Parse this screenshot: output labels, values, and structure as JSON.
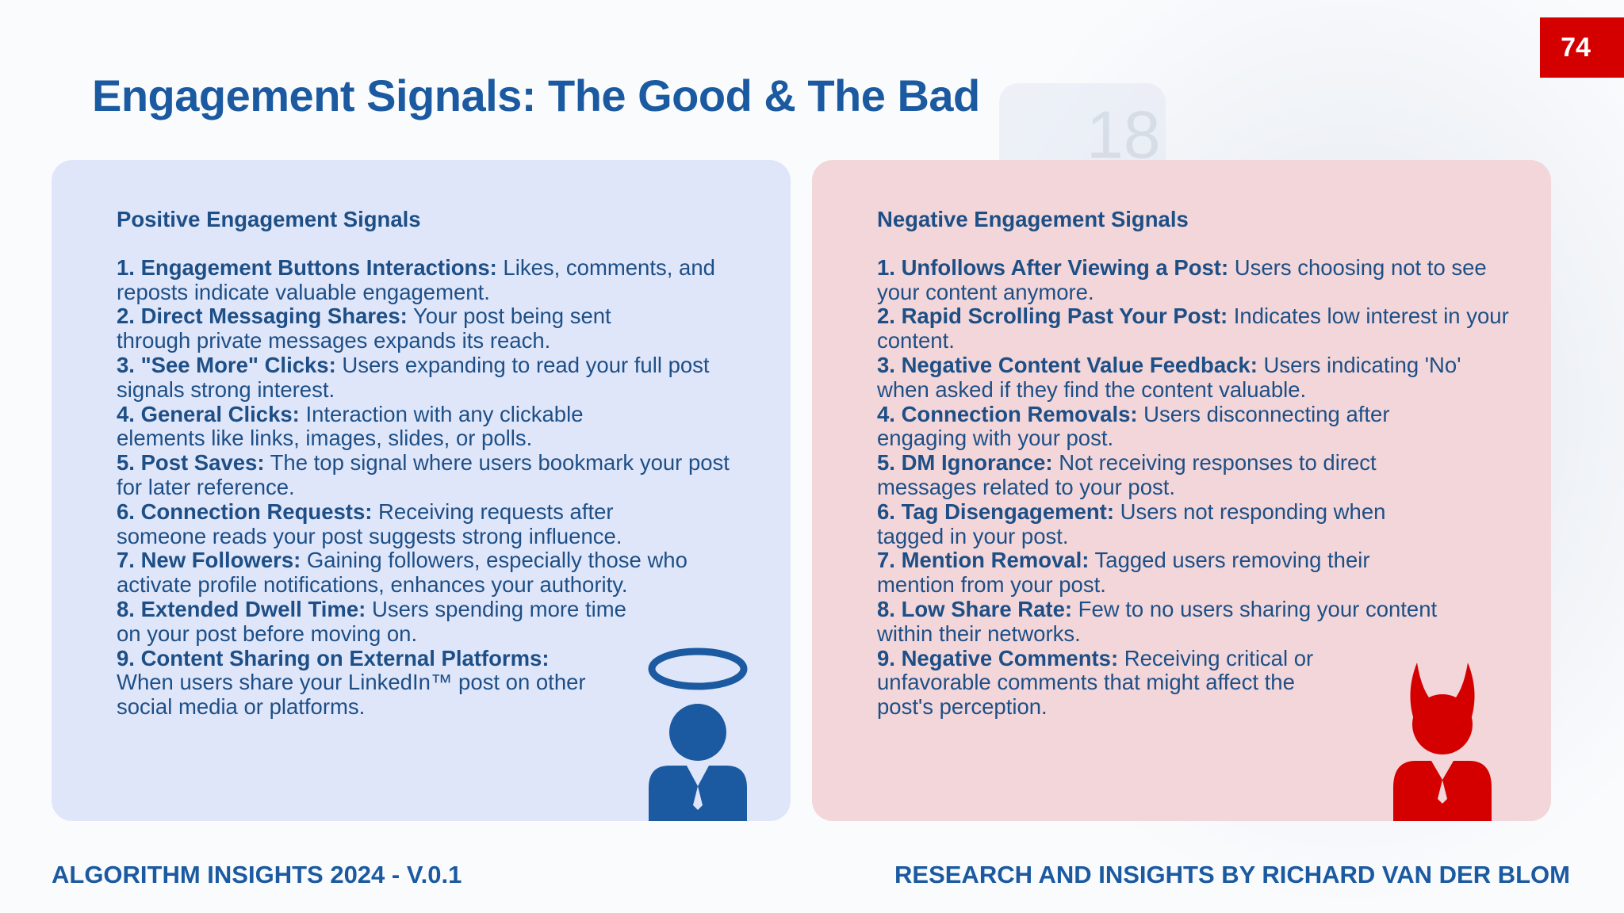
{
  "page_number": "74",
  "title": "Engagement Signals: The Good & The Bad",
  "background_number": "18",
  "colors": {
    "brand_blue": "#1b5aa0",
    "accent_red": "#d40000",
    "positive_panel": "#e0e6fa",
    "negative_panel": "#f2d6d9"
  },
  "positive": {
    "heading": "Positive Engagement Signals",
    "icon": "angel-person-icon",
    "items": [
      {
        "label": "1. Engagement Buttons Interactions:",
        "text": " Likes, comments, and reposts indicate valuable engagement."
      },
      {
        "label": "2. Direct Messaging Shares:",
        "text": " Your post being sent through private messages expands its reach."
      },
      {
        "label": "3. \"See More\" Clicks:",
        "text": " Users expanding to read your full post signals strong interest."
      },
      {
        "label": "4. General Clicks:",
        "text": " Interaction with any clickable elements like links, images, slides, or polls."
      },
      {
        "label": "5. Post Saves:",
        "text": " The top signal where users bookmark your post for later reference."
      },
      {
        "label": "6. Connection Requests:",
        "text": " Receiving requests after someone reads your post suggests strong influence."
      },
      {
        "label": "7. New Followers:",
        "text": " Gaining followers, especially those who activate profile notifications, enhances your authority."
      },
      {
        "label": "8. Extended Dwell Time:",
        "text": " Users spending more time on your post before moving on."
      },
      {
        "label": "9. Content Sharing on External Platforms:",
        "text": " When users share your LinkedIn™ post on other social media or platforms."
      }
    ]
  },
  "negative": {
    "heading": "Negative Engagement Signals",
    "icon": "devil-person-icon",
    "items": [
      {
        "label": "1. Unfollows After Viewing a Post:",
        "text": " Users choosing not to see your content anymore."
      },
      {
        "label": "2. Rapid Scrolling Past Your Post:",
        "text": " Indicates low interest in your content."
      },
      {
        "label": "3. Negative Content Value Feedback:",
        "text": " Users indicating 'No' when asked if they find the content valuable."
      },
      {
        "label": "4. Connection Removals:",
        "text": " Users disconnecting after engaging with your post."
      },
      {
        "label": "5. DM Ignorance:",
        "text": " Not receiving responses to direct messages related to your post."
      },
      {
        "label": "6. Tag Disengagement:",
        "text": " Users not responding when tagged in your post."
      },
      {
        "label": "7. Mention Removal:",
        "text": " Tagged users removing their mention from your post."
      },
      {
        "label": "8. Low Share Rate:",
        "text": " Few to no users sharing your content within their networks."
      },
      {
        "label": "9. Negative Comments:",
        "text": " Receiving critical or unfavorable comments that might affect the post's perception."
      }
    ]
  },
  "footer": {
    "left": "ALGORITHM INSIGHTS 2024 - V.0.1",
    "right": "RESEARCH AND INSIGHTS BY RICHARD VAN DER BLOM"
  }
}
